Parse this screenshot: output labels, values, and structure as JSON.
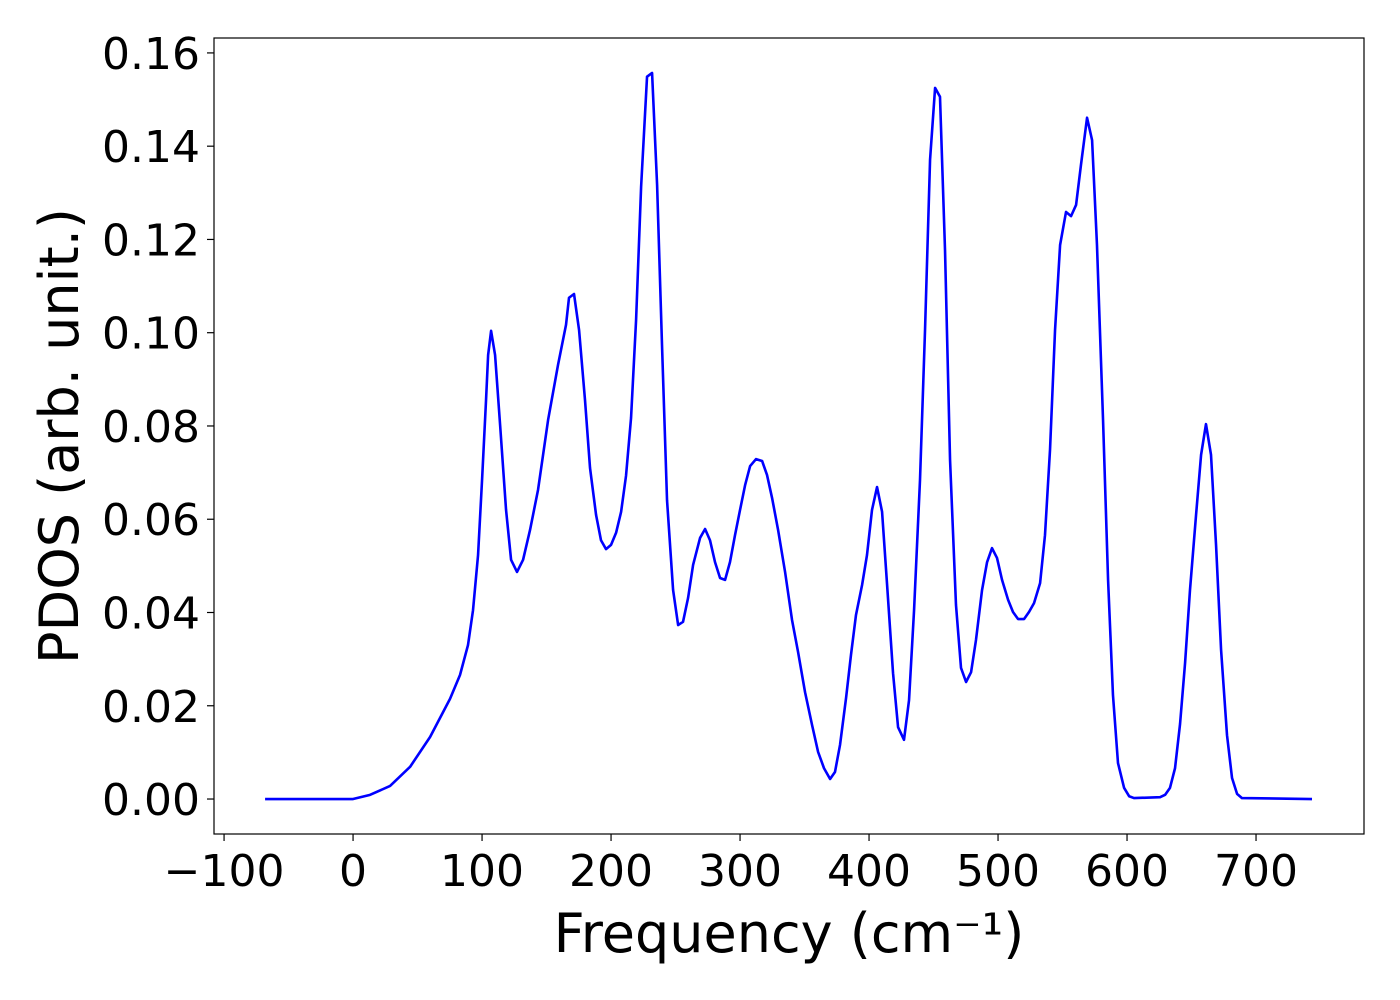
{
  "chart_data": {
    "type": "line",
    "xlabel": "Frequency (cm⁻¹)",
    "ylabel": "PDOS (arb. unit.)",
    "color": "#0000ff",
    "xlim": [
      -107.8,
      783.7
    ],
    "ylim": [
      -0.0075,
      0.1632
    ],
    "xticks": [
      {
        "value": -100,
        "label": "−100"
      },
      0,
      100,
      200,
      300,
      400,
      500,
      600,
      700
    ],
    "yticks": [
      {
        "value": 0,
        "label": "0.00"
      },
      {
        "value": 0.02,
        "label": "0.02"
      },
      {
        "value": 0.04,
        "label": "0.04"
      },
      {
        "value": 0.06,
        "label": "0.06"
      },
      {
        "value": 0.08,
        "label": "0.08"
      },
      {
        "value": 0.1,
        "label": "0.10"
      },
      {
        "value": 0.12,
        "label": "0.12"
      },
      {
        "value": 0.14,
        "label": "0.14"
      },
      {
        "value": 0.16,
        "label": "0.16"
      }
    ],
    "x": [
      -68.2,
      0,
      13.2,
      28.7,
      44.2,
      59.7,
      75.2,
      82.9,
      89.1,
      93.0,
      96.9,
      100,
      103.1,
      104.7,
      107.0,
      110.1,
      114.0,
      118.6,
      122.5,
      127.1,
      131.8,
      137.2,
      143.4,
      151.2,
      158.9,
      165.1,
      167.4,
      171.3,
      175.2,
      179.8,
      183.7,
      188.4,
      192.2,
      196.1,
      200,
      203.9,
      207.8,
      211.6,
      215.5,
      219.4,
      223.3,
      227.9,
      231.8,
      235.7,
      239.5,
      243.4,
      248.1,
      252,
      255.8,
      259.7,
      263.6,
      269,
      272.9,
      276.7,
      280.6,
      284.5,
      288.4,
      292.2,
      296.1,
      300,
      303.9,
      307.8,
      312.4,
      317.1,
      320.9,
      324.8,
      329.5,
      334.9,
      340.3,
      345,
      350.4,
      355.8,
      360.5,
      365.1,
      369.8,
      373.6,
      377.5,
      382.2,
      386,
      389.9,
      394.6,
      398.4,
      402.3,
      406.2,
      410.1,
      414,
      418.6,
      422.5,
      427.1,
      431,
      434.9,
      439.5,
      443.4,
      447.3,
      451.2,
      455,
      458.9,
      462.8,
      467.4,
      471.3,
      475.2,
      479.1,
      482.9,
      487.6,
      491.5,
      495.3,
      499.2,
      503.1,
      507.8,
      511.6,
      515.5,
      520.2,
      524,
      527.9,
      532.6,
      536.4,
      540.3,
      544.2,
      548.1,
      552.7,
      556.6,
      560.5,
      564.3,
      569,
      572.9,
      576.7,
      581.4,
      585.3,
      589.1,
      593,
      597.7,
      601.6,
      605.4,
      625.6,
      629.5,
      633.3,
      637.2,
      641.1,
      645,
      648.8,
      653.5,
      657.4,
      661.2,
      665.1,
      669,
      672.9,
      677.5,
      681.4,
      685.3,
      689.1,
      743.4
    ],
    "values": [
      0,
      0,
      0.0009,
      0.0028,
      0.0069,
      0.0133,
      0.0215,
      0.0266,
      0.033,
      0.0405,
      0.0523,
      0.0684,
      0.0856,
      0.0952,
      0.1004,
      0.0952,
      0.0802,
      0.062,
      0.0513,
      0.0487,
      0.0513,
      0.0577,
      0.0663,
      0.0813,
      0.0931,
      0.1017,
      0.1075,
      0.1083,
      0.1006,
      0.0856,
      0.071,
      0.0609,
      0.0555,
      0.0536,
      0.0545,
      0.0571,
      0.0616,
      0.0693,
      0.0817,
      0.1027,
      0.1313,
      0.1549,
      0.1557,
      0.1317,
      0.0974,
      0.0641,
      0.0448,
      0.0373,
      0.038,
      0.0431,
      0.0502,
      0.056,
      0.0579,
      0.0555,
      0.0508,
      0.0474,
      0.047,
      0.0508,
      0.0566,
      0.062,
      0.0673,
      0.0714,
      0.0729,
      0.0725,
      0.0695,
      0.0646,
      0.0577,
      0.0487,
      0.0384,
      0.0315,
      0.0229,
      0.0159,
      0.0101,
      0.0066,
      0.0043,
      0.0058,
      0.0116,
      0.0217,
      0.0309,
      0.0395,
      0.0459,
      0.0523,
      0.062,
      0.0669,
      0.0616,
      0.0459,
      0.027,
      0.0154,
      0.0127,
      0.0212,
      0.0405,
      0.0684,
      0.1006,
      0.1371,
      0.1525,
      0.1506,
      0.1177,
      0.0727,
      0.0416,
      0.0281,
      0.0251,
      0.0272,
      0.0341,
      0.0448,
      0.0508,
      0.0538,
      0.0517,
      0.047,
      0.0427,
      0.0401,
      0.0386,
      0.0386,
      0.0401,
      0.042,
      0.0463,
      0.0566,
      0.0749,
      0.1006,
      0.1188,
      0.1259,
      0.125,
      0.1274,
      0.136,
      0.1461,
      0.1413,
      0.1188,
      0.0813,
      0.047,
      0.0223,
      0.0077,
      0.0024,
      0.0006,
      0.0002,
      0.0004,
      0.0009,
      0.0024,
      0.0066,
      0.0161,
      0.0292,
      0.0448,
      0.0609,
      0.0738,
      0.0804,
      0.0738,
      0.0545,
      0.032,
      0.0137,
      0.0045,
      0.0011,
      0.0002,
      0
    ]
  }
}
